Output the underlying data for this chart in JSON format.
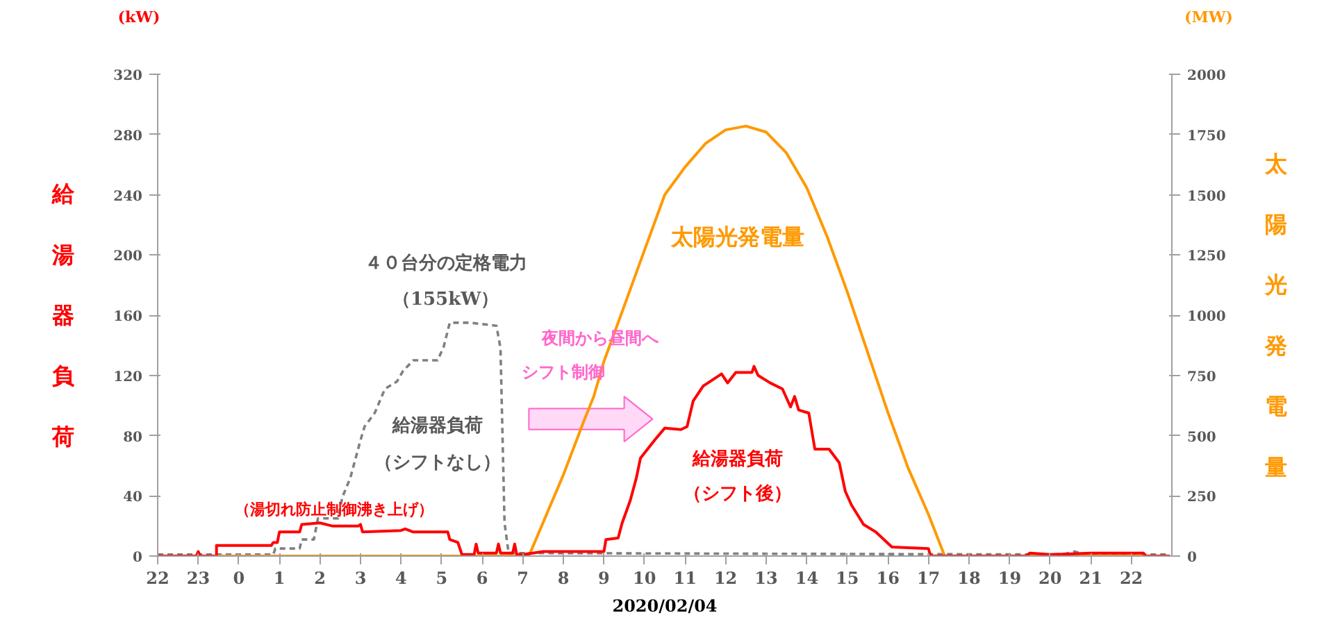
{
  "chart_data": {
    "type": "line",
    "xlabel": "2020/02/04",
    "ylabel": "給湯器負荷",
    "y2label": "太陽光発電量",
    "xlim": [
      "2020-02-03T22:00",
      "2020-02-04T23:00"
    ],
    "xticks": [
      {
        "value": "2020-02-03T22:00",
        "label": "22"
      },
      {
        "value": "2020-02-03T23:00",
        "label": "23"
      },
      {
        "value": "2020-02-04T00:00",
        "label": "0"
      },
      {
        "value": "2020-02-04T01:00",
        "label": "1"
      },
      {
        "value": "2020-02-04T02:00",
        "label": "2"
      },
      {
        "value": "2020-02-04T03:00",
        "label": "3"
      },
      {
        "value": "2020-02-04T04:00",
        "label": "4"
      },
      {
        "value": "2020-02-04T05:00",
        "label": "5"
      },
      {
        "value": "2020-02-04T06:00",
        "label": "6"
      },
      {
        "value": "2020-02-04T07:00",
        "label": "7"
      },
      {
        "value": "2020-02-04T08:00",
        "label": "8"
      },
      {
        "value": "2020-02-04T09:00",
        "label": "9"
      },
      {
        "value": "2020-02-04T10:00",
        "label": "10"
      },
      {
        "value": "2020-02-04T11:00",
        "label": "11"
      },
      {
        "value": "2020-02-04T12:00",
        "label": "12"
      },
      {
        "value": "2020-02-04T13:00",
        "label": "13"
      },
      {
        "value": "2020-02-04T14:00",
        "label": "14"
      },
      {
        "value": "2020-02-04T15:00",
        "label": "15"
      },
      {
        "value": "2020-02-04T16:00",
        "label": "16"
      },
      {
        "value": "2020-02-04T17:00",
        "label": "17"
      },
      {
        "value": "2020-02-04T18:00",
        "label": "18"
      },
      {
        "value": "2020-02-04T19:00",
        "label": "19"
      },
      {
        "value": "2020-02-04T20:00",
        "label": "20"
      },
      {
        "value": "2020-02-04T21:00",
        "label": "21"
      },
      {
        "value": "2020-02-04T22:00",
        "label": "22"
      }
    ],
    "ylim": [
      0,
      320
    ],
    "yticks": [
      0,
      40,
      80,
      120,
      160,
      200,
      240,
      280,
      320
    ],
    "y2lim": [
      0,
      2000
    ],
    "y2ticks": [
      0,
      250,
      500,
      750,
      1000,
      1250,
      1500,
      1750,
      2000
    ],
    "grid": false,
    "marker": "none",
    "series": [
      {
        "color": "#808080",
        "line_style": "dashed",
        "x": [
          "2020-02-03T22:00",
          "2020-02-04T00:51",
          "2020-02-04T00:54",
          "2020-02-04T01:30",
          "2020-02-04T01:33",
          "2020-02-04T01:51",
          "2020-02-04T01:57",
          "2020-02-04T02:27",
          "2020-02-04T02:33",
          "2020-02-04T02:45",
          "2020-02-04T03:00",
          "2020-02-04T03:06",
          "2020-02-04T03:21",
          "2020-02-04T03:36",
          "2020-02-04T03:54",
          "2020-02-04T04:03",
          "2020-02-04T04:18",
          "2020-02-04T04:54",
          "2020-02-04T05:03",
          "2020-02-04T05:12",
          "2020-02-04T05:42",
          "2020-02-04T06:21",
          "2020-02-04T06:27",
          "2020-02-04T06:33",
          "2020-02-04T06:39",
          "2020-02-04T20:18",
          "2020-02-04T20:36",
          "2020-02-04T20:54",
          "2020-02-04T22:57"
        ],
        "values": [
          1,
          1,
          5,
          5,
          11,
          11,
          25,
          25,
          39,
          52,
          77,
          86,
          95,
          111,
          116,
          123,
          130,
          130,
          139,
          155,
          155,
          153,
          138,
          22,
          2,
          1,
          3,
          1,
          1
        ]
      },
      {
        "color": "#ff9900",
        "line_style": "solid",
        "axis": "y2",
        "x": [
          "2020-02-03T22:00",
          "2020-02-04T07:09",
          "2020-02-04T08:00",
          "2020-02-04T08:30",
          "2020-02-04T08:45",
          "2020-02-04T09:00",
          "2020-02-04T09:30",
          "2020-02-04T10:00",
          "2020-02-04T10:30",
          "2020-02-04T11:00",
          "2020-02-04T11:30",
          "2020-02-04T12:00",
          "2020-02-04T12:30",
          "2020-02-04T13:00",
          "2020-02-04T13:30",
          "2020-02-04T14:00",
          "2020-02-04T14:30",
          "2020-02-04T15:00",
          "2020-02-04T15:30",
          "2020-02-04T16:00",
          "2020-02-04T16:30",
          "2020-02-04T17:00",
          "2020-02-04T17:24",
          "2020-02-04T22:57"
        ],
        "values": [
          0,
          0,
          337,
          558,
          663,
          808,
          1038,
          1270,
          1500,
          1615,
          1712,
          1769,
          1785,
          1760,
          1673,
          1529,
          1327,
          1096,
          846,
          596,
          365,
          173,
          0,
          0
        ]
      },
      {
        "color": "#ff0000",
        "line_style": "solid",
        "x": [
          "2020-02-03T22:00",
          "2020-02-03T22:57",
          "2020-02-03T23:00",
          "2020-02-03T23:03",
          "2020-02-03T23:27",
          "2020-02-03T23:27",
          "2020-02-04T00:48",
          "2020-02-04T00:51",
          "2020-02-04T00:57",
          "2020-02-04T01:00",
          "2020-02-04T01:30",
          "2020-02-04T01:33",
          "2020-02-04T02:00",
          "2020-02-04T02:18",
          "2020-02-04T02:57",
          "2020-02-04T03:00",
          "2020-02-04T03:03",
          "2020-02-04T04:00",
          "2020-02-04T04:06",
          "2020-02-04T04:18",
          "2020-02-04T05:09",
          "2020-02-04T05:12",
          "2020-02-04T05:24",
          "2020-02-04T05:30",
          "2020-02-04T05:48",
          "2020-02-04T05:51",
          "2020-02-04T05:54",
          "2020-02-04T06:21",
          "2020-02-04T06:24",
          "2020-02-04T06:27",
          "2020-02-04T06:45",
          "2020-02-04T06:48",
          "2020-02-04T06:51",
          "2020-02-04T07:00",
          "2020-02-04T07:30",
          "2020-02-04T09:00",
          "2020-02-04T09:03",
          "2020-02-04T09:21",
          "2020-02-04T09:27",
          "2020-02-04T09:39",
          "2020-02-04T09:48",
          "2020-02-04T09:54",
          "2020-02-04T10:15",
          "2020-02-04T10:30",
          "2020-02-04T10:54",
          "2020-02-04T11:03",
          "2020-02-04T11:12",
          "2020-02-04T11:27",
          "2020-02-04T11:54",
          "2020-02-04T12:03",
          "2020-02-04T12:15",
          "2020-02-04T12:39",
          "2020-02-04T12:42",
          "2020-02-04T12:48",
          "2020-02-04T13:06",
          "2020-02-04T13:24",
          "2020-02-04T13:36",
          "2020-02-04T13:42",
          "2020-02-04T13:48",
          "2020-02-04T14:03",
          "2020-02-04T14:12",
          "2020-02-04T14:33",
          "2020-02-04T14:48",
          "2020-02-04T14:57",
          "2020-02-04T15:06",
          "2020-02-04T15:24",
          "2020-02-04T15:42",
          "2020-02-04T16:06",
          "2020-02-04T17:00",
          "2020-02-04T17:03",
          "2020-02-04T19:24",
          "2020-02-04T19:30",
          "2020-02-04T20:00",
          "2020-02-04T21:00",
          "2020-02-04T22:18",
          "2020-02-04T22:21",
          "2020-02-04T22:57"
        ],
        "values": [
          0,
          0,
          3,
          0,
          0,
          7,
          7,
          9,
          9,
          16,
          16,
          21,
          22,
          20,
          20,
          21,
          16,
          17,
          18,
          16,
          16,
          11,
          9,
          1,
          1,
          8,
          2,
          2,
          8,
          2,
          2,
          8,
          1,
          1,
          3,
          3,
          11,
          12,
          22,
          37,
          52,
          65,
          77,
          85,
          84,
          86,
          103,
          113,
          121,
          115,
          122,
          122,
          126,
          120,
          115,
          111,
          99,
          106,
          97,
          95,
          71,
          71,
          62,
          43,
          34,
          21,
          16,
          6,
          5,
          0,
          0,
          2,
          1,
          2,
          2,
          0,
          0
        ]
      }
    ],
    "annotations": [
      "(kW)",
      "(MW)",
      "４０台分の定格電力",
      "（155kW）",
      "給湯器負荷",
      "（シフトなし）",
      "夜間から昼間へ",
      "シフト制御",
      "太陽光発電量",
      "給湯器負荷",
      "（シフト後）",
      "（湯切れ防止制御沸き上げ）"
    ]
  }
}
